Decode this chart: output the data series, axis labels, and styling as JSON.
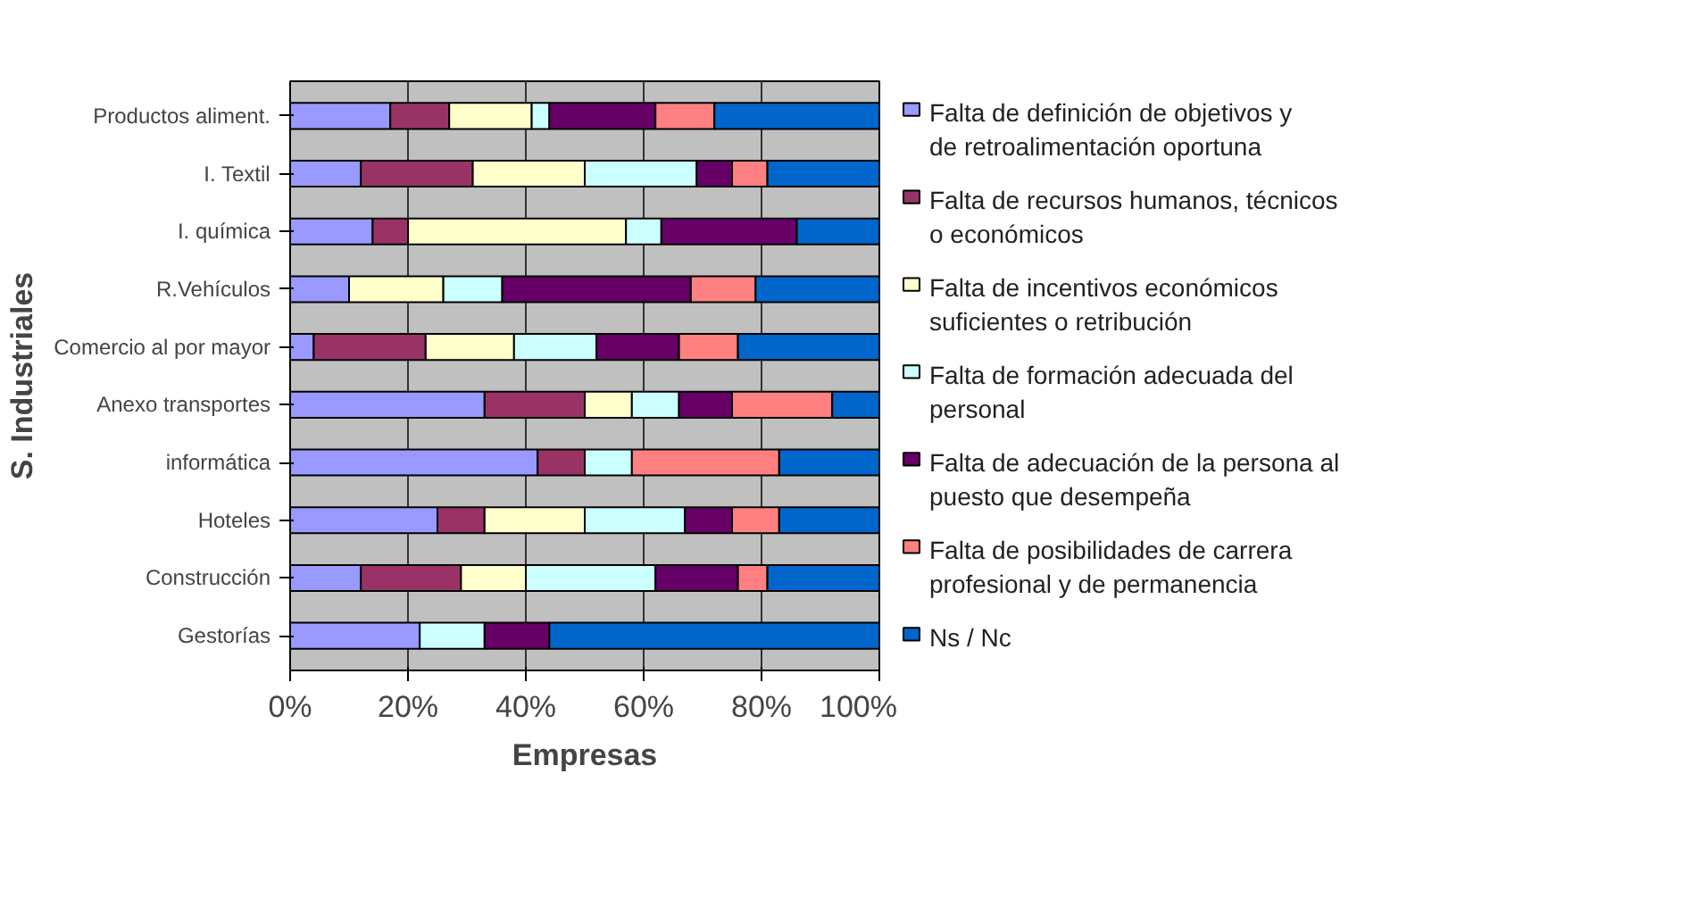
{
  "chart_data": {
    "type": "bar",
    "orientation": "horizontal",
    "stacked": true,
    "xlabel": "Empresas",
    "ylabel": "S. Industriales",
    "categories": [
      "Productos aliment.",
      "I. Textil",
      "I. química",
      "R.Vehículos",
      "Comercio al por mayor",
      "Anexo transportes",
      "informática",
      "Hoteles",
      "Construcción",
      "Gestorías"
    ],
    "series": [
      {
        "name": "Falta de definición de objetivos y de retroalimentación oportuna",
        "color": "#9999ff",
        "values": [
          17,
          12,
          14,
          10,
          4,
          33,
          42,
          25,
          12,
          22
        ]
      },
      {
        "name": "Falta de recursos humanos, técnicos o económicos",
        "color": "#993366",
        "values": [
          10,
          19,
          6,
          0,
          19,
          17,
          8,
          8,
          17,
          0
        ]
      },
      {
        "name": "Falta de incentivos económicos suficientes o retribución",
        "color": "#ffffcc",
        "values": [
          14,
          19,
          37,
          16,
          15,
          8,
          0,
          17,
          11,
          0
        ]
      },
      {
        "name": "Falta de formación adecuada del personal",
        "color": "#ccffff",
        "values": [
          3,
          19,
          6,
          10,
          14,
          8,
          8,
          17,
          22,
          11
        ]
      },
      {
        "name": "Falta de adecuación de la persona al puesto que desempeña",
        "color": "#660066",
        "values": [
          18,
          6,
          23,
          32,
          14,
          9,
          0,
          8,
          14,
          11
        ]
      },
      {
        "name": "Falta de posibilidades de carrera profesional y de permanencia",
        "color": "#ff8080",
        "values": [
          10,
          6,
          0,
          11,
          10,
          17,
          25,
          8,
          5,
          0
        ]
      },
      {
        "name": "Ns / Nc",
        "color": "#0066cc",
        "values": [
          28,
          19,
          14,
          21,
          24,
          8,
          17,
          17,
          19,
          56
        ]
      }
    ],
    "xlim": [
      0,
      100
    ],
    "xticks": [
      {
        "value": 0,
        "label": "0%"
      },
      {
        "value": 20,
        "label": "20%"
      },
      {
        "value": 40,
        "label": "40%"
      },
      {
        "value": 60,
        "label": "60%"
      },
      {
        "value": 80,
        "label": "80%"
      },
      {
        "value": 100,
        "label": "100%"
      }
    ],
    "grid": "x",
    "legend": "right"
  }
}
